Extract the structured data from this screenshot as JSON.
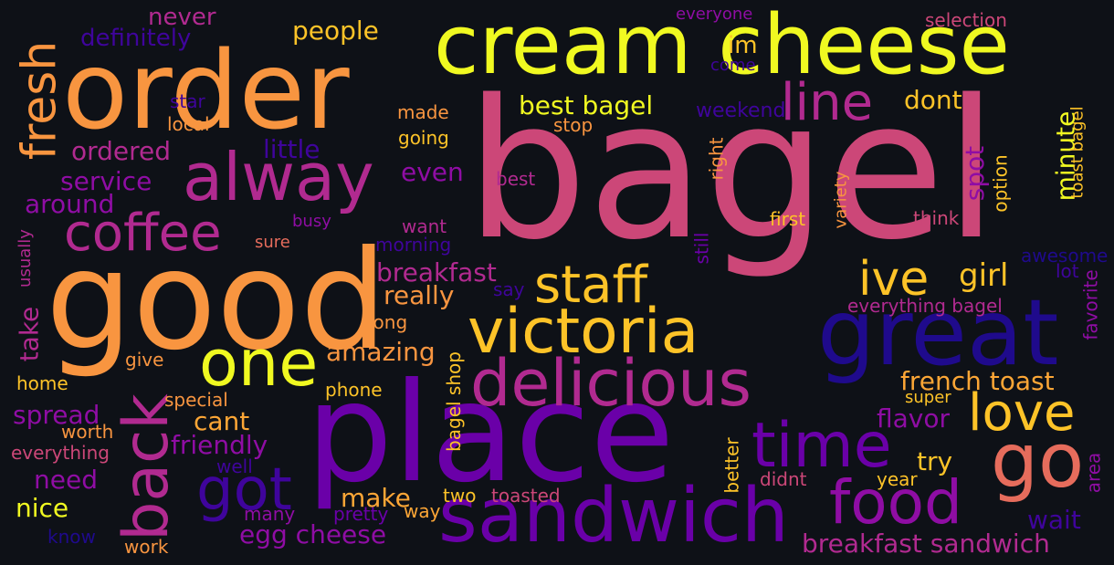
{
  "words": {
    "bagel": "bagel",
    "good": "good",
    "order": "order",
    "cream_cheese": "cream cheese",
    "place": "place",
    "great": "great",
    "victoria": "victoria",
    "delicious": "delicious",
    "sandwich": "sandwich",
    "alway": "alway",
    "coffee": "coffee",
    "staff": "staff",
    "one": "one",
    "time": "time",
    "food": "food",
    "go": "go",
    "love": "love",
    "ive": "ive",
    "line": "line",
    "back": "back",
    "got": "got",
    "fresh": "fresh",
    "people": "people",
    "never": "never",
    "definitely": "definitely",
    "everyone": "everyone",
    "selection": "selection",
    "im": "im",
    "come": "come",
    "best_bagel": "best bagel",
    "dont": "dont",
    "made": "made",
    "stop": "stop",
    "weekend": "weekend",
    "star": "star",
    "local": "local",
    "ordered": "ordered",
    "little": "little",
    "going": "going",
    "service": "service",
    "even": "even",
    "around": "around",
    "best": "best",
    "right": "right",
    "spot": "spot",
    "minute": "minute",
    "option": "option",
    "toast_bagel": "toast bagel",
    "first": "first",
    "variety": "variety",
    "think": "think",
    "busy": "busy",
    "want": "want",
    "sure": "sure",
    "morning": "morning",
    "usually": "usually",
    "still": "still",
    "awesome": "awesome",
    "lot": "lot",
    "breakfast": "breakfast",
    "girl": "girl",
    "say": "say",
    "really": "really",
    "favorite": "favorite",
    "take": "take",
    "long": "long",
    "everything_bagel": "everything bagel",
    "amazing": "amazing",
    "give": "give",
    "home": "home",
    "bagel_shop": "bagel shop",
    "phone": "phone",
    "french_toast": "french toast",
    "special": "special",
    "super": "super",
    "spread": "spread",
    "cant": "cant",
    "flavor": "flavor",
    "worth": "worth",
    "friendly": "friendly",
    "everything": "everything",
    "well": "well",
    "better": "better",
    "try": "try",
    "area": "area",
    "need": "need",
    "didnt": "didnt",
    "year": "year",
    "make": "make",
    "nice": "nice",
    "two": "two",
    "toasted": "toasted",
    "many": "many",
    "pretty": "pretty",
    "way": "way",
    "egg_cheese": "egg cheese",
    "wait": "wait",
    "know": "know",
    "work": "work",
    "breakfast_sandwich": "breakfast sandwich"
  }
}
